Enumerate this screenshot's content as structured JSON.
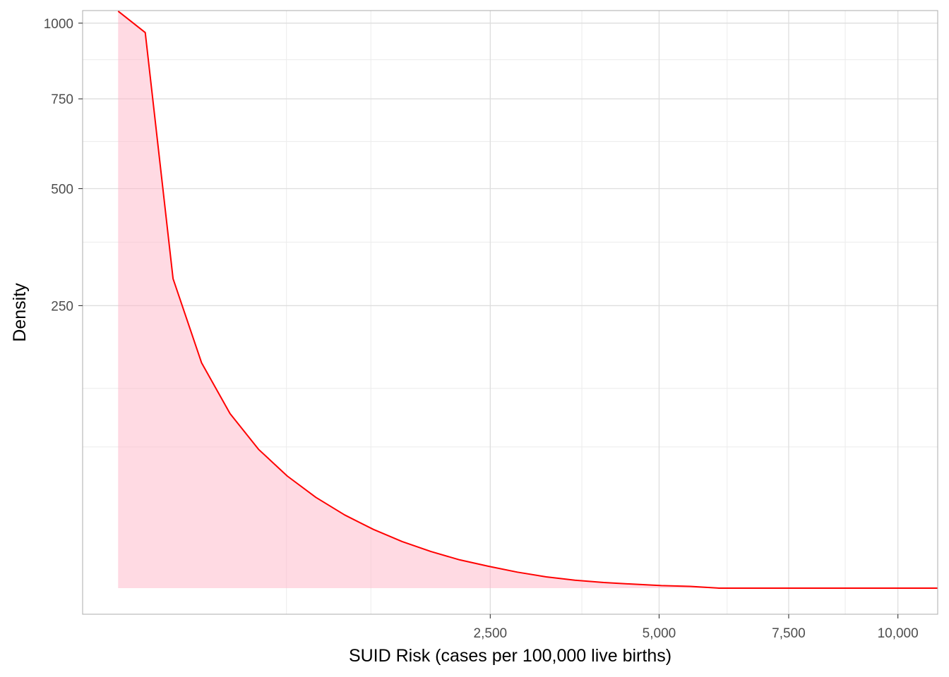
{
  "chart_data": {
    "type": "area",
    "xlabel": "SUID Risk (cases per 100,000 live births)",
    "ylabel": "Density",
    "x_scale": "sqrt",
    "y_scale": "sqrt",
    "xlim": [
      0,
      11000
    ],
    "ylim": [
      0,
      1045
    ],
    "x_ticks": [
      2500,
      5000,
      7500,
      10000
    ],
    "x_tick_labels": [
      "2,500",
      "5,000",
      "7,500",
      "10,000"
    ],
    "x_minor_ticks": [
      625,
      1250,
      3750,
      6250,
      8750
    ],
    "y_ticks": [
      250,
      500,
      750,
      1000
    ],
    "y_tick_labels": [
      "250",
      "500",
      "750",
      "1000"
    ],
    "y_minor_ticks": [
      62.5,
      125,
      375,
      625,
      875
    ],
    "grid": true,
    "series": [
      {
        "x": [
          19,
          59,
          123,
          213,
          327,
          466,
          630,
          819,
          1033,
          1272,
          1536,
          1825,
          2140,
          2479,
          2843,
          3233,
          3647,
          4086,
          4551,
          5040,
          5554,
          6094,
          6658,
          7248,
          7863,
          8502,
          9167,
          9857,
          10571,
          10999
        ],
        "y": [
          1043,
          967,
          300,
          159,
          95.4,
          60.3,
          39.4,
          25.8,
          16.8,
          10.8,
          6.8,
          4.2,
          2.5,
          1.5,
          0.8,
          0.4,
          0.2,
          0.1,
          0.05,
          0.02,
          0.01,
          0,
          0,
          0,
          0,
          0,
          0,
          0,
          0,
          0
        ]
      }
    ],
    "colors": {
      "line": "#ff0000",
      "fill": "#ffb6c8",
      "grid_major": "#dedede",
      "grid_minor": "#ececec",
      "panel_border": "#b3b3b3"
    }
  }
}
